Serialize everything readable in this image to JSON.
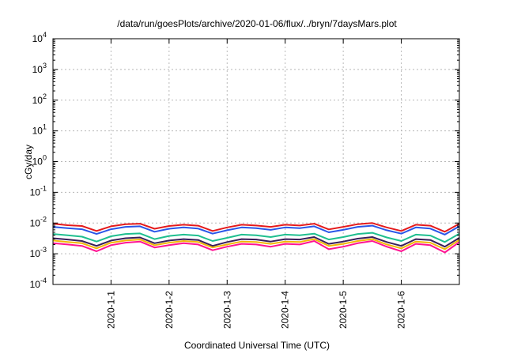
{
  "chart_data": {
    "type": "line",
    "title": "/data/run/goesPlots/archive/2020-01-06/flux/../bryn/7daysMars.plot",
    "xlabel": "Coordinated Universal Time (UTC)",
    "ylabel": "cGy/day",
    "y_scale": "log",
    "ylim": [
      0.0001,
      10000
    ],
    "x_units": "days since 2019-12-31 00:00 UTC",
    "xlim": [
      0.0,
      7.0
    ],
    "grid": true,
    "y_ticks": [
      {
        "base": "10",
        "exp": "-4"
      },
      {
        "base": "10",
        "exp": "-3"
      },
      {
        "base": "10",
        "exp": "-2"
      },
      {
        "base": "10",
        "exp": "-1"
      },
      {
        "base": "10",
        "exp": "0"
      },
      {
        "base": "10",
        "exp": "1"
      },
      {
        "base": "10",
        "exp": "2"
      },
      {
        "base": "10",
        "exp": "3"
      },
      {
        "base": "10",
        "exp": "4"
      }
    ],
    "x_ticks": [
      {
        "label": "2020-1-1",
        "x": 1.0
      },
      {
        "label": "2020-1-2",
        "x": 2.0
      },
      {
        "label": "2020-1-3",
        "x": 3.0
      },
      {
        "label": "2020-1-4",
        "x": 4.0
      },
      {
        "label": "2020-1-5",
        "x": 5.0
      },
      {
        "label": "2020-1-6",
        "x": 6.0
      }
    ],
    "x": [
      0.0,
      0.25,
      0.5,
      0.75,
      1.0,
      1.25,
      1.5,
      1.75,
      2.0,
      2.25,
      2.5,
      2.75,
      3.0,
      3.25,
      3.5,
      3.75,
      4.0,
      4.25,
      4.5,
      4.75,
      5.0,
      5.25,
      5.5,
      5.75,
      6.0,
      6.25,
      6.5,
      6.75,
      7.0
    ],
    "series": [
      {
        "color": "#e41a1c",
        "values": [
          0.0095,
          0.0085,
          0.008,
          0.0055,
          0.0078,
          0.0092,
          0.0095,
          0.0065,
          0.008,
          0.0088,
          0.0082,
          0.0055,
          0.0072,
          0.0088,
          0.0083,
          0.0075,
          0.0088,
          0.0083,
          0.0095,
          0.0062,
          0.0075,
          0.0092,
          0.01,
          0.0072,
          0.0055,
          0.0088,
          0.0082,
          0.0052,
          0.0095
        ]
      },
      {
        "color": "#2a56e8",
        "values": [
          0.0075,
          0.0068,
          0.0063,
          0.0044,
          0.0063,
          0.0075,
          0.0078,
          0.0052,
          0.0065,
          0.0072,
          0.0066,
          0.0045,
          0.0058,
          0.0072,
          0.0068,
          0.006,
          0.0072,
          0.0068,
          0.0078,
          0.005,
          0.006,
          0.0075,
          0.0082,
          0.0058,
          0.0045,
          0.0072,
          0.0066,
          0.0042,
          0.0078
        ]
      },
      {
        "color": "#1fbf8f",
        "values": [
          0.0044,
          0.004,
          0.0036,
          0.0025,
          0.0037,
          0.0044,
          0.0046,
          0.003,
          0.0038,
          0.0042,
          0.0039,
          0.0026,
          0.0033,
          0.0042,
          0.004,
          0.0035,
          0.0042,
          0.004,
          0.0045,
          0.0029,
          0.0035,
          0.0044,
          0.0048,
          0.0034,
          0.0026,
          0.0042,
          0.0039,
          0.0024,
          0.0045
        ]
      },
      {
        "color": "#3a1f5a",
        "values": [
          0.0032,
          0.0029,
          0.0026,
          0.0018,
          0.0027,
          0.0032,
          0.0034,
          0.0022,
          0.0027,
          0.003,
          0.0028,
          0.0018,
          0.0024,
          0.003,
          0.0029,
          0.0025,
          0.003,
          0.0029,
          0.0035,
          0.0021,
          0.0025,
          0.0031,
          0.0035,
          0.0024,
          0.0018,
          0.003,
          0.0028,
          0.0017,
          0.0033
        ]
      },
      {
        "color": "#f2b705",
        "values": [
          0.0027,
          0.0024,
          0.0022,
          0.0015,
          0.0023,
          0.0027,
          0.0029,
          0.0019,
          0.0023,
          0.0026,
          0.0024,
          0.0016,
          0.002,
          0.0025,
          0.0024,
          0.0021,
          0.0025,
          0.0024,
          0.003,
          0.0018,
          0.0021,
          0.0026,
          0.003,
          0.002,
          0.0015,
          0.0025,
          0.0023,
          0.0014,
          0.0028
        ]
      },
      {
        "color": "#ff1493",
        "values": [
          0.0022,
          0.002,
          0.0018,
          0.0012,
          0.0019,
          0.0023,
          0.0025,
          0.0016,
          0.0019,
          0.0022,
          0.002,
          0.0013,
          0.0017,
          0.0021,
          0.002,
          0.0017,
          0.0021,
          0.002,
          0.0026,
          0.0014,
          0.0017,
          0.0022,
          0.0026,
          0.0017,
          0.0012,
          0.0021,
          0.0019,
          0.0011,
          0.0024
        ]
      }
    ]
  }
}
